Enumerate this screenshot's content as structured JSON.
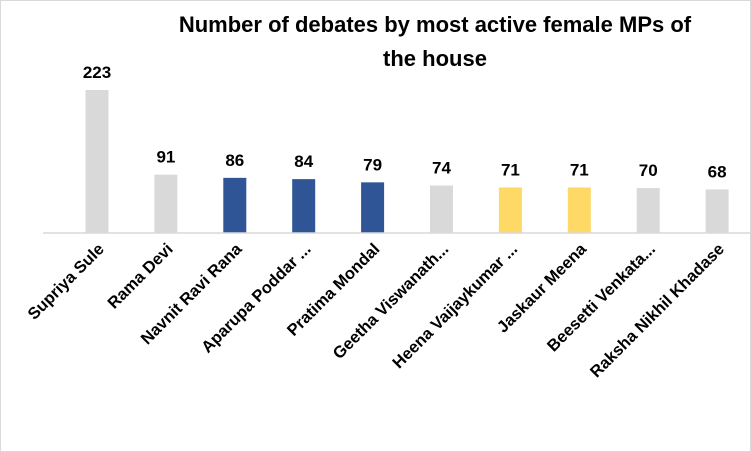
{
  "chart_data": {
    "type": "bar",
    "title_lines": [
      "Number of debates by most active female MPs of",
      "the house"
    ],
    "categories": [
      "Supriya Sule",
      "Rama Devi",
      "Navnit Ravi Rana",
      "Aparupa Poddar ...",
      "Pratima Mondal",
      "Geetha Viswanath...",
      "Heena Vaijaykumar ...",
      "Jaskaur Meena",
      "Beesetti Venkata...",
      "Raksha Nikhil Khadase"
    ],
    "values": [
      223,
      91,
      86,
      84,
      79,
      74,
      71,
      71,
      70,
      68
    ],
    "colors": [
      "#d9d9d9",
      "#d9d9d9",
      "#2f5597",
      "#2f5597",
      "#2f5597",
      "#d9d9d9",
      "#ffd966",
      "#ffd966",
      "#d9d9d9",
      "#d9d9d9"
    ],
    "ylim": [
      0,
      223
    ],
    "grid": false,
    "data_labels": true
  }
}
